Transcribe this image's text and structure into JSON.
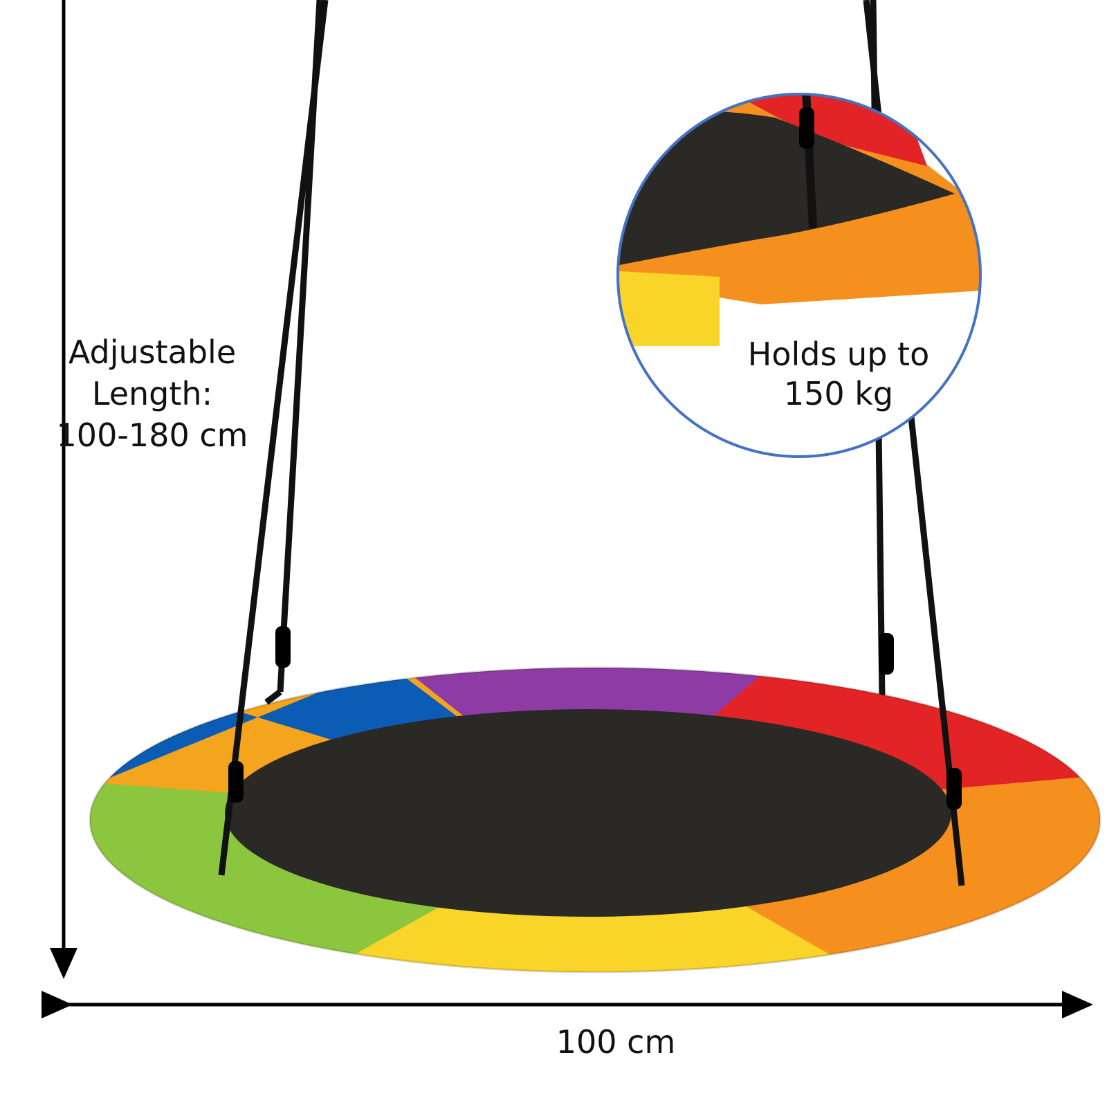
{
  "annotations": {
    "length": {
      "lines": [
        "Adjustable",
        "Length:",
        "100-180 cm"
      ]
    },
    "capacity": {
      "lines": [
        "Holds up to",
        "150 kg"
      ]
    },
    "width": {
      "label": "100 cm"
    }
  }
}
